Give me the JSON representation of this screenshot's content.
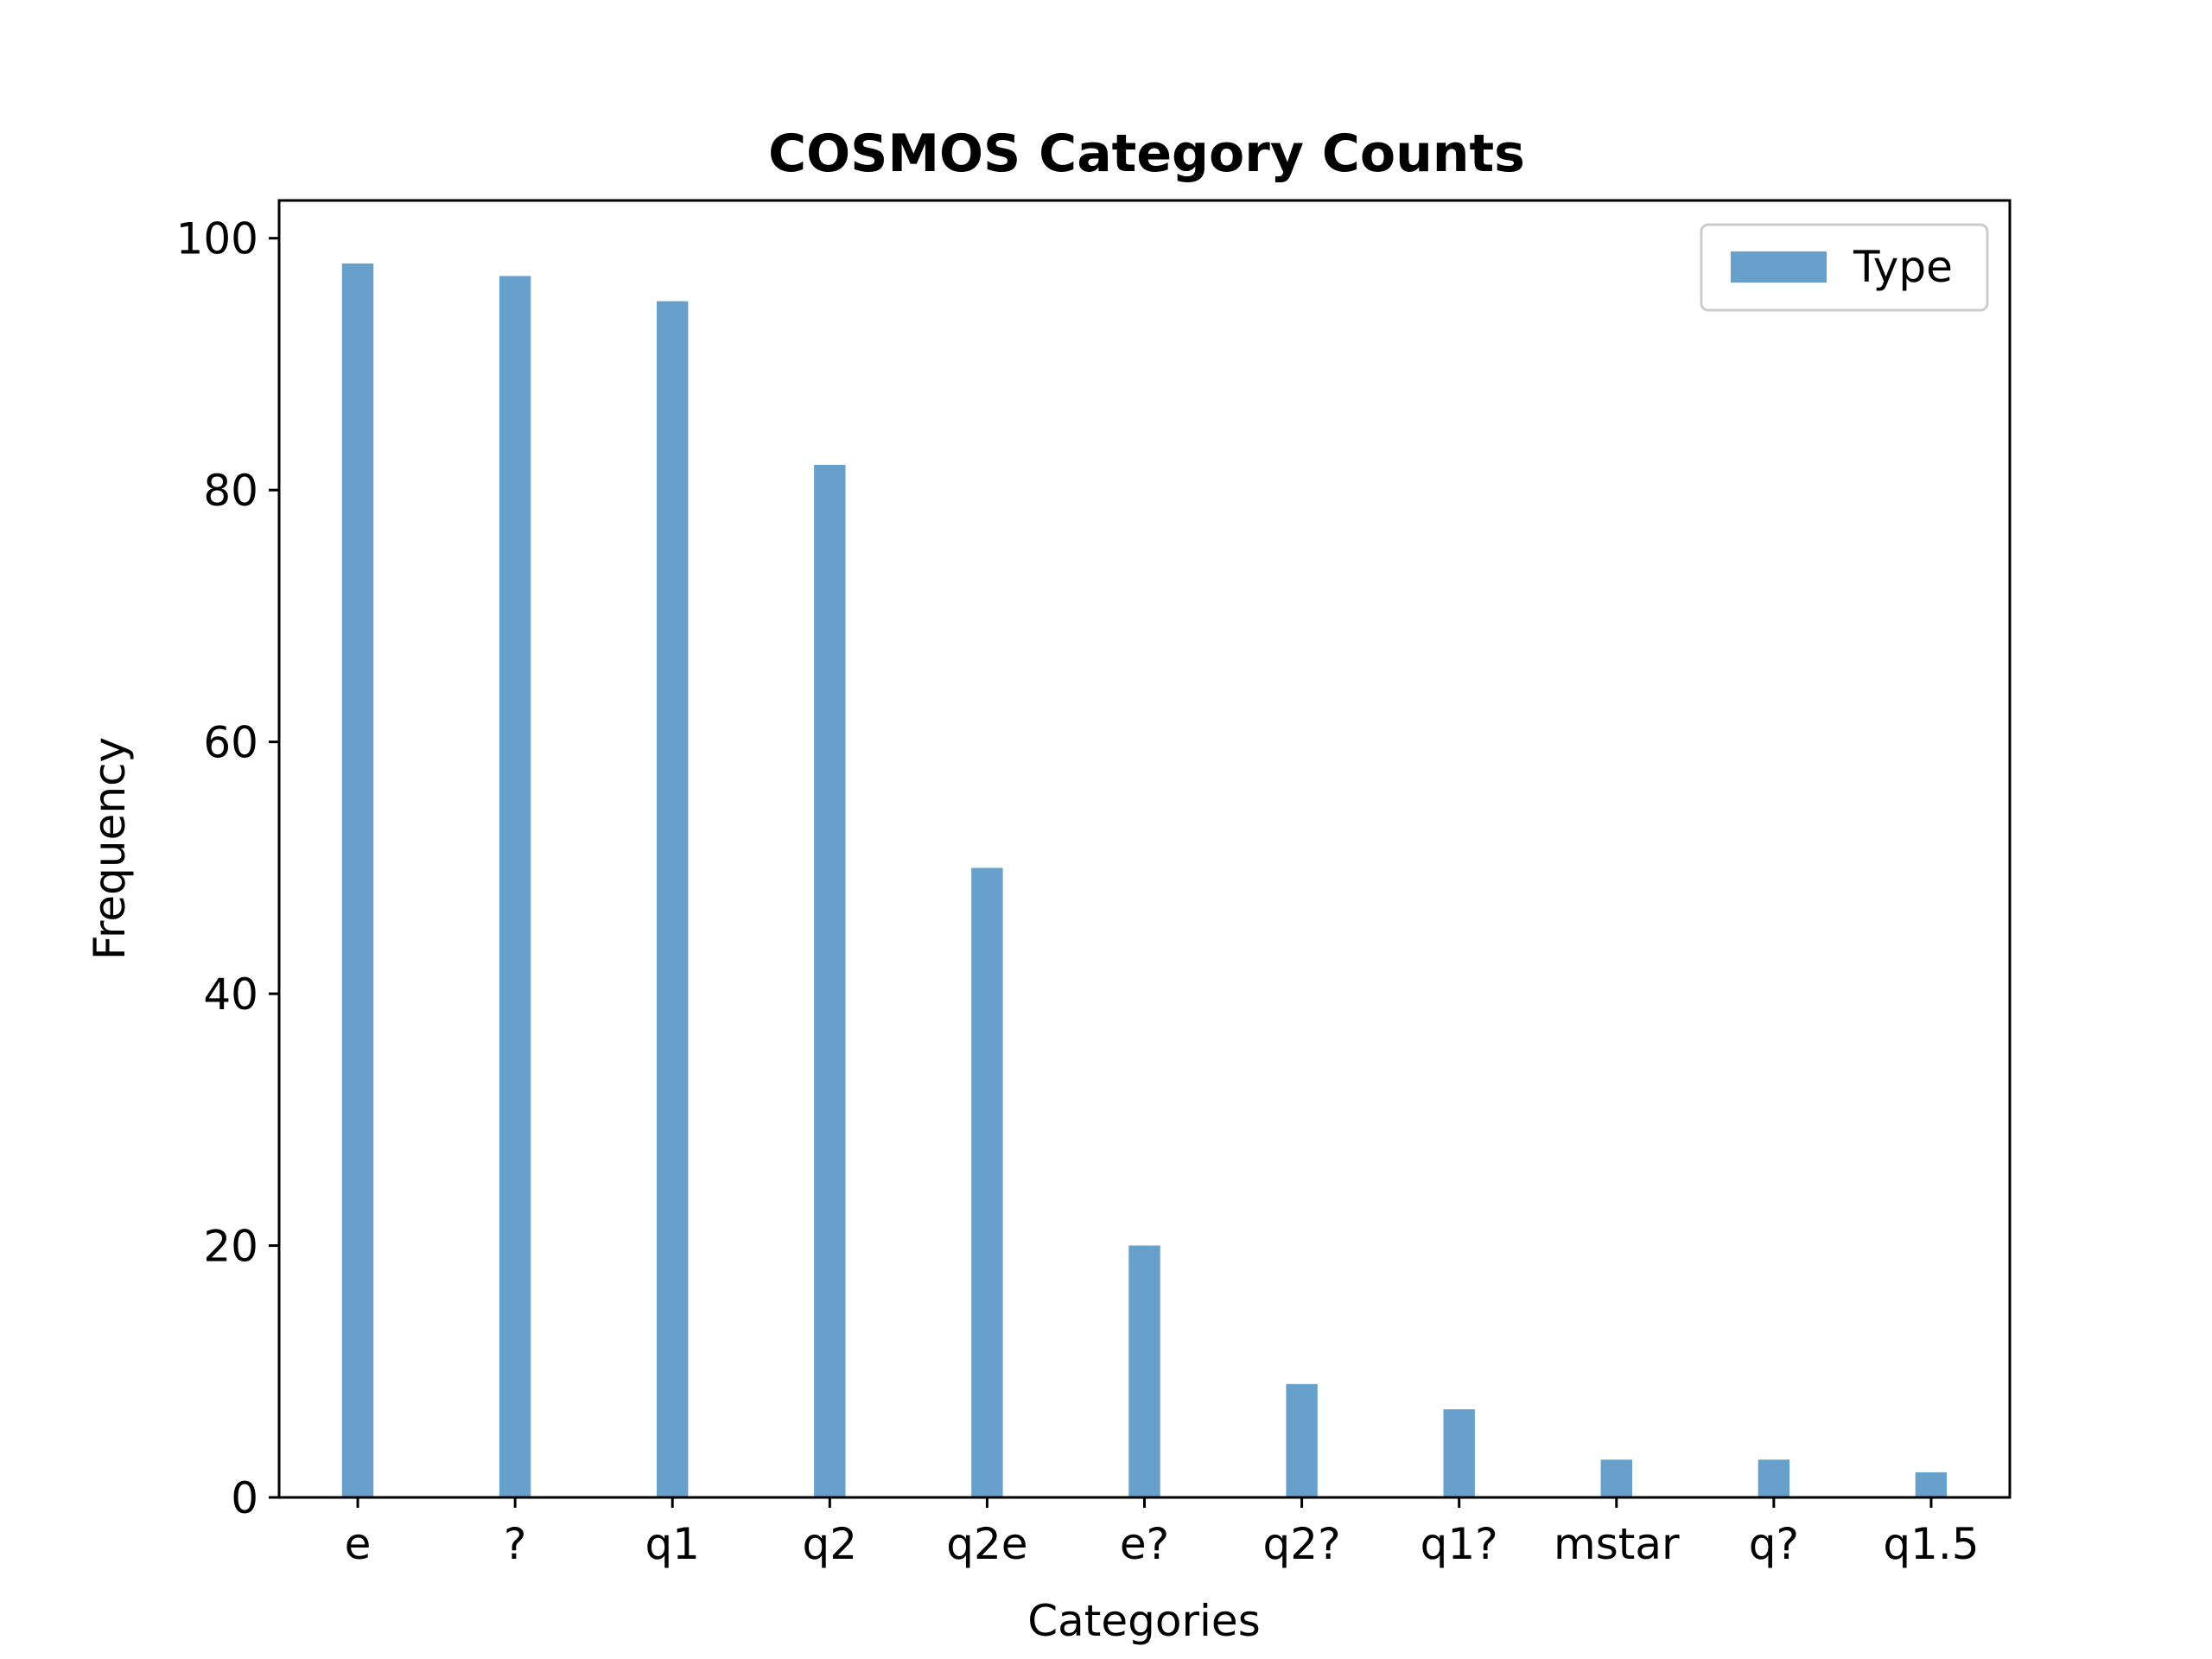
{
  "chart_data": {
    "type": "bar",
    "title": "COSMOS Category Counts",
    "xlabel": "Categories",
    "ylabel": "Frequency",
    "categories": [
      "e",
      "?",
      "q1",
      "q2",
      "q2e",
      "e?",
      "q2?",
      "q1?",
      "mstar",
      "q?",
      "q1.5"
    ],
    "series": [
      {
        "name": "Type",
        "values": [
          98,
          97,
          95,
          82,
          50,
          20,
          9,
          7,
          3,
          3,
          2
        ],
        "color": "#66a0cb"
      }
    ],
    "ylim": [
      0,
      103
    ],
    "yticks": [
      0,
      20,
      40,
      60,
      80,
      100
    ],
    "grid": false,
    "legend_position": "top-right"
  }
}
